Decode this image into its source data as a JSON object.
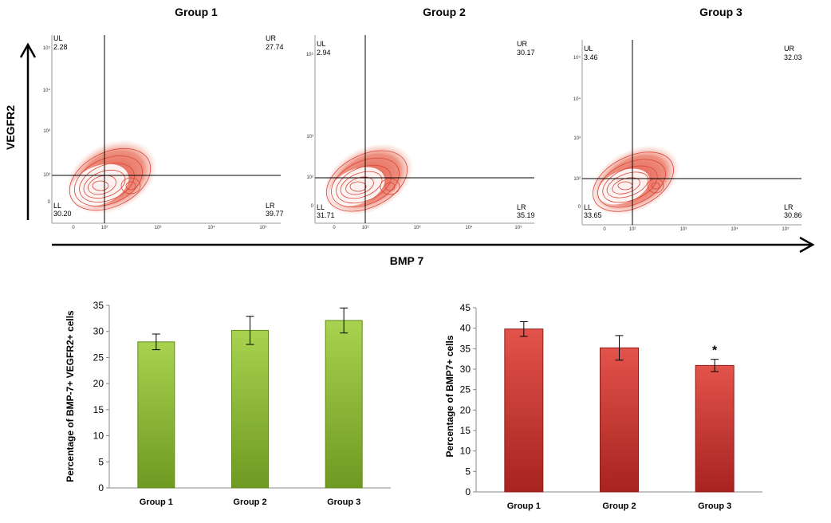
{
  "flow": {
    "x_axis_label": "BMP 7",
    "y_axis_label": "VEGFR2",
    "panels": [
      {
        "title": "Group 1",
        "quadrants": {
          "UL": "2.28",
          "UR": "27.74",
          "LL": "30.20",
          "LR": "39.77"
        },
        "x_ticks": [
          "0",
          "10²",
          "10³",
          "10⁴",
          "10⁵"
        ],
        "y_ticks": [
          "10⁵",
          "10⁴",
          "10³",
          "10²",
          "0"
        ]
      },
      {
        "title": "Group 2",
        "quadrants": {
          "UL": "2.94",
          "UR": "30.17",
          "LL": "31.71",
          "LR": "35.19"
        },
        "x_ticks": [
          "0",
          "10²",
          "10³",
          "10⁴",
          "10⁵"
        ],
        "y_ticks": [
          "10⁵",
          "10³",
          "10²",
          "0"
        ]
      },
      {
        "title": "Group 3",
        "quadrants": {
          "UL": "3.46",
          "UR": "32.03",
          "LL": "33.65",
          "LR": "30.86"
        },
        "x_ticks": [
          "0",
          "10²",
          "10³",
          "10⁴",
          "10⁵"
        ],
        "y_ticks": [
          "10⁵",
          "10⁴",
          "10³",
          "10²",
          "0"
        ]
      }
    ]
  },
  "chart_data": [
    {
      "type": "bar",
      "categories": [
        "Group 1",
        "Group 2",
        "Group 3"
      ],
      "values": [
        28.0,
        30.2,
        32.1
      ],
      "errors": [
        1.5,
        2.7,
        2.4
      ],
      "ylabel": "Percentage of BMP-7+ VEGFR2+ cells",
      "xlabel": "",
      "ylim": [
        0,
        35
      ],
      "yticks": [
        0,
        5,
        10,
        15,
        20,
        25,
        30,
        35
      ],
      "color": "#8fbf3a",
      "annotations": []
    },
    {
      "type": "bar",
      "categories": [
        "Group 1",
        "Group 2",
        "Group 3"
      ],
      "values": [
        39.8,
        35.2,
        30.9
      ],
      "errors": [
        1.8,
        3.0,
        1.5
      ],
      "ylabel": "Percentage of BMP7+ cells",
      "xlabel": "",
      "ylim": [
        0,
        45
      ],
      "yticks": [
        0,
        5,
        10,
        15,
        20,
        25,
        30,
        35,
        40,
        45
      ],
      "color": "#d6403a",
      "annotations": [
        {
          "category": "Group 3",
          "text": "*"
        }
      ]
    }
  ]
}
